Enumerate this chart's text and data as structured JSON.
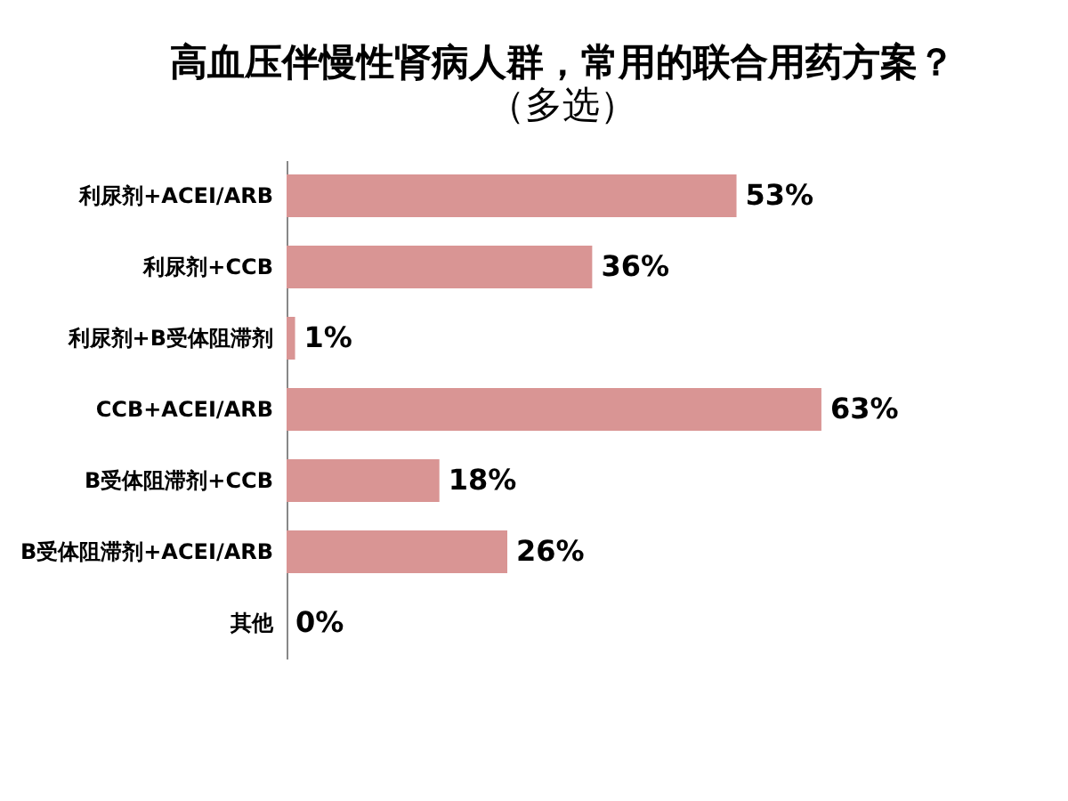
{
  "chart_data": {
    "type": "bar",
    "orientation": "horizontal",
    "title": "高血压伴慢性肾病人群，常用的联合用药方案？",
    "subtitle": "（多选）",
    "categories": [
      "利尿剂+ACEI/ARB",
      "利尿剂+CCB",
      "利尿剂+B受体阻滞剂",
      "CCB+ACEI/ARB",
      "B受体阻滞剂+CCB",
      "B受体阻滞剂+ACEI/ARB",
      "其他"
    ],
    "values": [
      53,
      36,
      1,
      63,
      18,
      26,
      0
    ],
    "value_labels": [
      "53%",
      "36%",
      "1%",
      "63%",
      "18%",
      "26%",
      "0%"
    ],
    "color": "#d99594",
    "grid": false,
    "tick_labels": "y"
  }
}
